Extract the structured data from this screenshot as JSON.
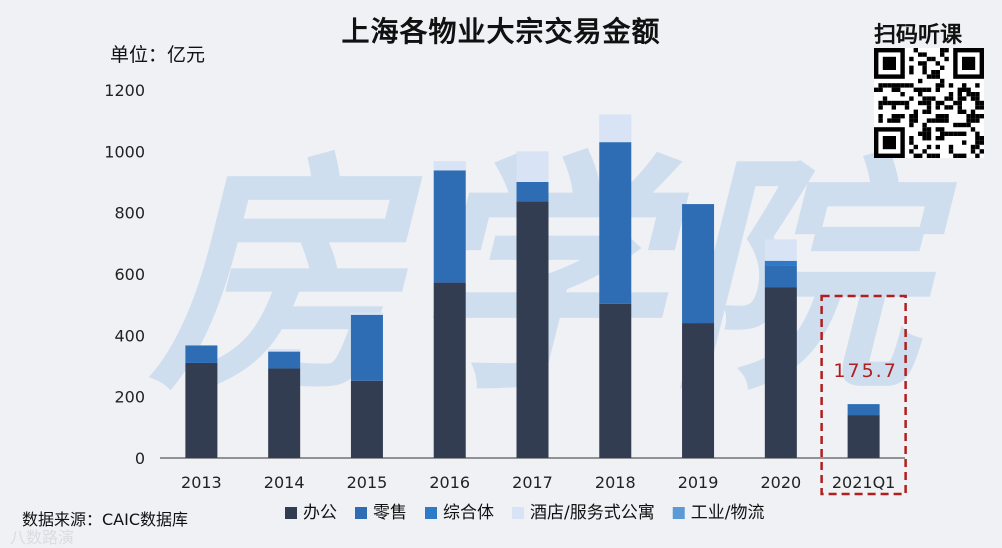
{
  "chart_data": {
    "type": "bar",
    "stacked": true,
    "title": "上海各物业大宗交易金额",
    "ylabel": "单位：亿元",
    "ylim": [
      0,
      1200
    ],
    "yticks": [
      0,
      200,
      400,
      600,
      800,
      1000,
      1200
    ],
    "categories": [
      "2013",
      "2014",
      "2015",
      "2016",
      "2017",
      "2018",
      "2019",
      "2020",
      "2021Q1"
    ],
    "series": [
      {
        "name": "办公",
        "color": "#333d51",
        "values": [
          310,
          292,
          252,
          572,
          837,
          503,
          440,
          556,
          140
        ]
      },
      {
        "name": "零售",
        "color": "#2e6db4",
        "values": [
          57,
          55,
          215,
          366,
          63,
          527,
          388,
          72,
          35.7
        ]
      },
      {
        "name": "综合体",
        "color": "#2f7ac8",
        "values": [
          0,
          0,
          0,
          0,
          0,
          0,
          0,
          15,
          0
        ]
      },
      {
        "name": "酒店/服务式公寓",
        "color": "#d8e3f5",
        "values": [
          0,
          8,
          7,
          30,
          100,
          90,
          0,
          70,
          0
        ]
      },
      {
        "name": "工业/物流",
        "color": "#5b9bd5",
        "values": [
          0,
          0,
          0,
          0,
          0,
          0,
          0,
          0,
          0
        ]
      }
    ],
    "annotation": {
      "category": "2021Q1",
      "text": "175.7"
    },
    "legend_position": "bottom",
    "grid": false
  },
  "texts": {
    "qr_label": "扫码听课",
    "source": "数据来源：CAIC数据库",
    "watermark": "房学院",
    "corner_mark": "八数路演"
  },
  "colors": {
    "background": "#eff1f4",
    "axis": "#333333",
    "annotation_box": "#b01e1e",
    "watermark": "#a9c8e6"
  }
}
